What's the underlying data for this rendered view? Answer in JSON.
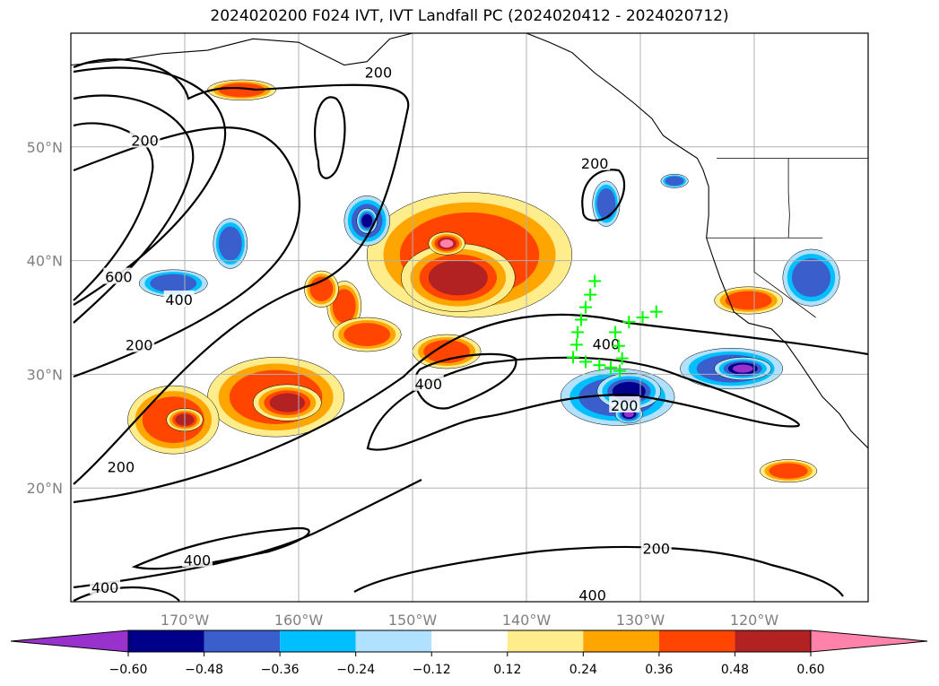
{
  "title": "2024020200 F024 IVT, IVT Landfall PC (2024020412 - 2024020712)",
  "map": {
    "lat_ticks": [
      {
        "value": 50,
        "label": "50°N"
      },
      {
        "value": 40,
        "label": "40°N"
      },
      {
        "value": 30,
        "label": "30°N"
      },
      {
        "value": 20,
        "label": "20°N"
      }
    ],
    "lon_ticks": [
      {
        "value": -170,
        "label": "170°W"
      },
      {
        "value": -160,
        "label": "160°W"
      },
      {
        "value": -150,
        "label": "150°W"
      },
      {
        "value": -140,
        "label": "140°W"
      },
      {
        "value": -130,
        "label": "130°W"
      },
      {
        "value": -120,
        "label": "120°W"
      }
    ],
    "extent": {
      "lon_min": -180,
      "lon_max": -110,
      "lat_min": 10,
      "lat_max": 60
    },
    "grid": true,
    "contour_labels": [
      {
        "text": "200",
        "lon": -173.5,
        "lat": 50.5
      },
      {
        "text": "200",
        "lon": -153,
        "lat": 56.5
      },
      {
        "text": "200",
        "lon": -134,
        "lat": 48.5
      },
      {
        "text": "600",
        "lon": -175.8,
        "lat": 38.5
      },
      {
        "text": "400",
        "lon": -170.5,
        "lat": 36.5
      },
      {
        "text": "200",
        "lon": -174,
        "lat": 32.5
      },
      {
        "text": "400",
        "lon": -148.6,
        "lat": 29.1
      },
      {
        "text": "400",
        "lon": -133,
        "lat": 32.6
      },
      {
        "text": "200",
        "lon": -131.4,
        "lat": 27.2
      },
      {
        "text": "200",
        "lon": -175.6,
        "lat": 21.8
      },
      {
        "text": "400",
        "lon": -168.9,
        "lat": 13.6
      },
      {
        "text": "200",
        "lon": -128.6,
        "lat": 14.6
      },
      {
        "text": "400",
        "lon": -134.2,
        "lat": 10.5
      },
      {
        "text": "400",
        "lon": -177,
        "lat": 11.2
      }
    ],
    "landfall_points": [
      [
        -134.0,
        38.2
      ],
      [
        -134.4,
        37.0
      ],
      [
        -134.8,
        35.9
      ],
      [
        -135.2,
        34.8
      ],
      [
        -135.5,
        33.7
      ],
      [
        -135.6,
        32.6
      ],
      [
        -135.9,
        31.5
      ],
      [
        -134.8,
        31.1
      ],
      [
        -133.6,
        30.8
      ],
      [
        -132.6,
        30.6
      ],
      [
        -131.8,
        30.3
      ],
      [
        -131.6,
        31.4
      ],
      [
        -131.9,
        32.5
      ],
      [
        -132.2,
        33.7
      ],
      [
        -131.0,
        34.6
      ],
      [
        -129.8,
        35.0
      ],
      [
        -128.6,
        35.5
      ]
    ],
    "colors": {
      "marker": "#00ff00",
      "contour": "#000000"
    }
  },
  "colorbar": {
    "bins": [
      {
        "color": "#9932cc"
      },
      {
        "color": "#00008b"
      },
      {
        "color": "#3a5fcd"
      },
      {
        "color": "#00bfff"
      },
      {
        "color": "#b0e2ff"
      },
      {
        "color": "#ffffff"
      },
      {
        "color": "#ffec8b"
      },
      {
        "color": "#ffa500"
      },
      {
        "color": "#ff4500"
      },
      {
        "color": "#b22222"
      },
      {
        "color": "#ff82ab"
      }
    ],
    "tick_labels": [
      "−0.60",
      "−0.48",
      "−0.36",
      "−0.24",
      "−0.12",
      "0.12",
      "0.24",
      "0.36",
      "0.48",
      "0.60"
    ]
  },
  "anomalies": [
    {
      "lon": -145,
      "lat": 40.5,
      "rx": 9,
      "ry": 5.5,
      "level": 3
    },
    {
      "lon": -146,
      "lat": 38.5,
      "rx": 5,
      "ry": 3,
      "level": 4
    },
    {
      "lon": -147,
      "lat": 41.5,
      "rx": 1.6,
      "ry": 1.0,
      "level": 5
    },
    {
      "lon": -162,
      "lat": 28,
      "rx": 6,
      "ry": 3.5,
      "level": 3
    },
    {
      "lon": -161,
      "lat": 27.5,
      "rx": 3,
      "ry": 1.6,
      "level": 4
    },
    {
      "lon": -171,
      "lat": 26,
      "rx": 4,
      "ry": 3,
      "level": 3
    },
    {
      "lon": -170,
      "lat": 26,
      "rx": 1.6,
      "ry": 1,
      "level": 4
    },
    {
      "lon": -120.5,
      "lat": 36.5,
      "rx": 3,
      "ry": 1.2,
      "level": 3
    },
    {
      "lon": -117,
      "lat": 21.5,
      "rx": 2.5,
      "ry": 1,
      "level": 3
    },
    {
      "lon": -156,
      "lat": 36,
      "rx": 1.5,
      "ry": 2.2,
      "level": 3
    },
    {
      "lon": -158,
      "lat": 37.5,
      "rx": 1.5,
      "ry": 1.6,
      "level": 3
    },
    {
      "lon": -165,
      "lat": 55,
      "rx": 3,
      "ry": 0.9,
      "level": 3
    },
    {
      "lon": -154,
      "lat": 33.5,
      "rx": 3,
      "ry": 1.5,
      "level": 3
    },
    {
      "lon": -147,
      "lat": 32,
      "rx": 3,
      "ry": 1.5,
      "level": 3
    },
    {
      "lon": -132,
      "lat": 28,
      "rx": 5,
      "ry": 2.5,
      "level": -3
    },
    {
      "lon": -131,
      "lat": 28.5,
      "rx": 2.8,
      "ry": 1.6,
      "level": -4
    },
    {
      "lon": -131,
      "lat": 26.5,
      "rx": 1.2,
      "ry": 0.8,
      "level": -5
    },
    {
      "lon": -122,
      "lat": 30.5,
      "rx": 4.5,
      "ry": 1.8,
      "level": -3
    },
    {
      "lon": -121,
      "lat": 30.5,
      "rx": 2.5,
      "ry": 1.0,
      "level": -5
    },
    {
      "lon": -154,
      "lat": 43.5,
      "rx": 2,
      "ry": 2.2,
      "level": -3
    },
    {
      "lon": -154,
      "lat": 43.5,
      "rx": 0.9,
      "ry": 1.1,
      "level": -4
    },
    {
      "lon": -166,
      "lat": 41.5,
      "rx": 1.5,
      "ry": 2.2,
      "level": -3
    },
    {
      "lon": -171,
      "lat": 38,
      "rx": 3,
      "ry": 1.2,
      "level": -3
    },
    {
      "lon": -133,
      "lat": 45,
      "rx": 1.2,
      "ry": 2.0,
      "level": -3
    },
    {
      "lon": -115,
      "lat": 38.5,
      "rx": 2.5,
      "ry": 2.5,
      "level": -3
    },
    {
      "lon": -127,
      "lat": 47,
      "rx": 1.2,
      "ry": 0.6,
      "level": -3
    }
  ],
  "coastline": [
    [
      -180,
      57.2
    ],
    [
      -176,
      57.6
    ],
    [
      -172,
      58.2
    ],
    [
      -168,
      58.5
    ],
    [
      -164,
      59.5
    ],
    [
      -160,
      59.2
    ],
    [
      -158,
      58.2
    ],
    [
      -156,
      57.2
    ],
    [
      -154,
      57.5
    ],
    [
      -152,
      59.5
    ],
    [
      -150,
      60
    ]
  ],
  "coast_na": [
    [
      -140,
      60
    ],
    [
      -138,
      59.2
    ],
    [
      -136,
      58.3
    ],
    [
      -134,
      56.5
    ],
    [
      -132,
      55
    ],
    [
      -130.5,
      53.8
    ],
    [
      -129,
      52.5
    ],
    [
      -128,
      51
    ],
    [
      -127,
      50.3
    ],
    [
      -125,
      49
    ],
    [
      -124.5,
      48
    ],
    [
      -124,
      46.5
    ],
    [
      -124,
      44
    ],
    [
      -124.2,
      42
    ],
    [
      -123.7,
      40.5
    ],
    [
      -123,
      38.5
    ],
    [
      -122.4,
      37
    ],
    [
      -121.8,
      35.5
    ],
    [
      -120.5,
      34.5
    ],
    [
      -118.5,
      34
    ],
    [
      -117.2,
      32.7
    ],
    [
      -116,
      31
    ],
    [
      -115,
      29.5
    ],
    [
      -114,
      28
    ],
    [
      -112.5,
      26.5
    ],
    [
      -111.5,
      25
    ],
    [
      -110,
      23.5
    ]
  ],
  "border_ca": [
    [
      -123.3,
      49
    ],
    [
      -110,
      49
    ]
  ],
  "border_states": [
    [
      [
        -124.2,
        42
      ],
      [
        -114,
        42
      ]
    ],
    [
      [
        -120,
        42
      ],
      [
        -120,
        39
      ],
      [
        -114.6,
        35
      ]
    ],
    [
      [
        -117,
        49
      ],
      [
        -117,
        46
      ],
      [
        -116.9,
        44
      ],
      [
        -117,
        42
      ]
    ]
  ]
}
